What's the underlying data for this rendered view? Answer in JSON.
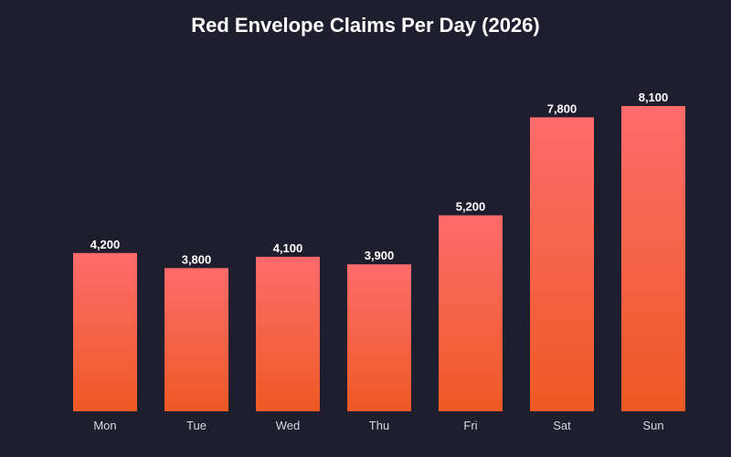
{
  "chart_data": {
    "type": "bar",
    "title": "Red Envelope Claims Per Day (2026)",
    "categories": [
      "Mon",
      "Tue",
      "Wed",
      "Thu",
      "Fri",
      "Sat",
      "Sun"
    ],
    "values": [
      4200,
      3800,
      4100,
      3900,
      5200,
      7800,
      8100
    ],
    "value_labels": [
      "4,200",
      "3,800",
      "4,100",
      "3,900",
      "5,200",
      "7,800",
      "8,100"
    ],
    "xlabel": "",
    "ylabel": "",
    "ylim": [
      0,
      8100
    ],
    "grid": false,
    "legend": "none",
    "colors": {
      "background": "#1f1e2f",
      "bar_top": "#ff6b6b",
      "bar_bottom": "#ee5a24",
      "title": "#ffffff",
      "value_label": "#ffffff",
      "tick_label": "#d8d8e0"
    }
  }
}
